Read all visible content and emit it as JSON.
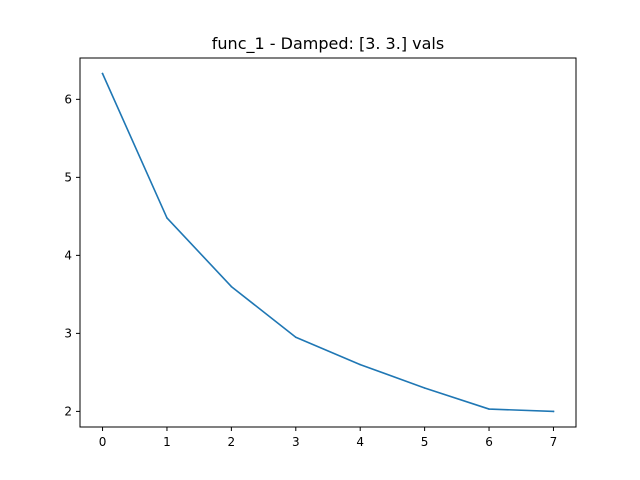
{
  "chart_data": {
    "type": "line",
    "title": "func_1 - Damped: [3. 3.] vals",
    "xlabel": "",
    "ylabel": "",
    "xlim": [
      -0.35,
      7.35
    ],
    "ylim": [
      1.8,
      6.53
    ],
    "grid": false,
    "x_ticks": [
      {
        "value": 0,
        "label": "0"
      },
      {
        "value": 1,
        "label": "1"
      },
      {
        "value": 2,
        "label": "2"
      },
      {
        "value": 3,
        "label": "3"
      },
      {
        "value": 4,
        "label": "4"
      },
      {
        "value": 5,
        "label": "5"
      },
      {
        "value": 6,
        "label": "6"
      },
      {
        "value": 7,
        "label": "7"
      }
    ],
    "y_ticks": [
      {
        "value": 2,
        "label": "2"
      },
      {
        "value": 3,
        "label": "3"
      },
      {
        "value": 4,
        "label": "4"
      },
      {
        "value": 5,
        "label": "5"
      },
      {
        "value": 6,
        "label": "6"
      }
    ],
    "series": [
      {
        "color": "#1f77b4",
        "x": [
          0,
          1,
          2,
          3,
          4,
          5,
          6,
          7
        ],
        "y": [
          6.33,
          4.48,
          3.6,
          2.95,
          2.6,
          2.3,
          2.03,
          2.0
        ]
      }
    ]
  }
}
